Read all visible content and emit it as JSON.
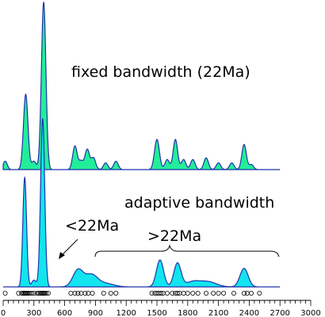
{
  "chart_data": {
    "type": "area",
    "xlim": [
      0,
      3000
    ],
    "x_ticks": [
      0,
      300,
      600,
      900,
      1200,
      1500,
      1800,
      2100,
      2400,
      2700,
      3000
    ],
    "colors": {
      "fixed_fill": "#22ee99",
      "adaptive_fill": "#11e5ee",
      "stroke": "#2233aa"
    },
    "panels": [
      {
        "label": "fixed bandwidth (22Ma)",
        "peaks": [
          {
            "center": 20,
            "height": 0.05,
            "width": 20
          },
          {
            "center": 220,
            "height": 0.45,
            "width": 22
          },
          {
            "center": 395,
            "height": 1.0,
            "width": 22
          },
          {
            "center": 300,
            "height": 0.05,
            "width": 22
          },
          {
            "center": 700,
            "height": 0.14,
            "width": 22
          },
          {
            "center": 760,
            "height": 0.05,
            "width": 22
          },
          {
            "center": 820,
            "height": 0.12,
            "width": 22
          },
          {
            "center": 880,
            "height": 0.07,
            "width": 22
          },
          {
            "center": 1000,
            "height": 0.04,
            "width": 22
          },
          {
            "center": 1100,
            "height": 0.05,
            "width": 22
          },
          {
            "center": 1500,
            "height": 0.18,
            "width": 24
          },
          {
            "center": 1600,
            "height": 0.06,
            "width": 22
          },
          {
            "center": 1680,
            "height": 0.18,
            "width": 22
          },
          {
            "center": 1760,
            "height": 0.06,
            "width": 22
          },
          {
            "center": 1850,
            "height": 0.06,
            "width": 22
          },
          {
            "center": 1980,
            "height": 0.07,
            "width": 22
          },
          {
            "center": 2100,
            "height": 0.04,
            "width": 22
          },
          {
            "center": 2230,
            "height": 0.04,
            "width": 22
          },
          {
            "center": 2350,
            "height": 0.15,
            "width": 22
          },
          {
            "center": 2420,
            "height": 0.03,
            "width": 22
          }
        ]
      },
      {
        "label": "adaptive bandwidth",
        "peaks": [
          {
            "center": 210,
            "height": 0.65,
            "width": 18
          },
          {
            "center": 385,
            "height": 1.0,
            "width": 20
          },
          {
            "center": 300,
            "height": 0.04,
            "width": 22
          },
          {
            "center": 730,
            "height": 0.1,
            "width": 50
          },
          {
            "center": 860,
            "height": 0.07,
            "width": 60
          },
          {
            "center": 1000,
            "height": 0.02,
            "width": 80
          },
          {
            "center": 1530,
            "height": 0.16,
            "width": 35
          },
          {
            "center": 1700,
            "height": 0.14,
            "width": 35
          },
          {
            "center": 1850,
            "height": 0.03,
            "width": 70
          },
          {
            "center": 2000,
            "height": 0.03,
            "width": 80
          },
          {
            "center": 2350,
            "height": 0.11,
            "width": 40
          }
        ]
      }
    ],
    "annotations": [
      {
        "text": "<22Ma"
      },
      {
        "text": ">22Ma"
      }
    ],
    "rug_samples": [
      20,
      150,
      180,
      195,
      205,
      215,
      225,
      235,
      245,
      260,
      280,
      300,
      330,
      345,
      360,
      375,
      385,
      395,
      405,
      420,
      440,
      660,
      700,
      730,
      760,
      800,
      830,
      870,
      980,
      1050,
      1100,
      1450,
      1480,
      1500,
      1520,
      1540,
      1560,
      1600,
      1650,
      1680,
      1700,
      1720,
      1760,
      1800,
      1850,
      1900,
      1980,
      2050,
      2100,
      2150,
      2250,
      2350,
      2380,
      2420,
      2500
    ]
  }
}
